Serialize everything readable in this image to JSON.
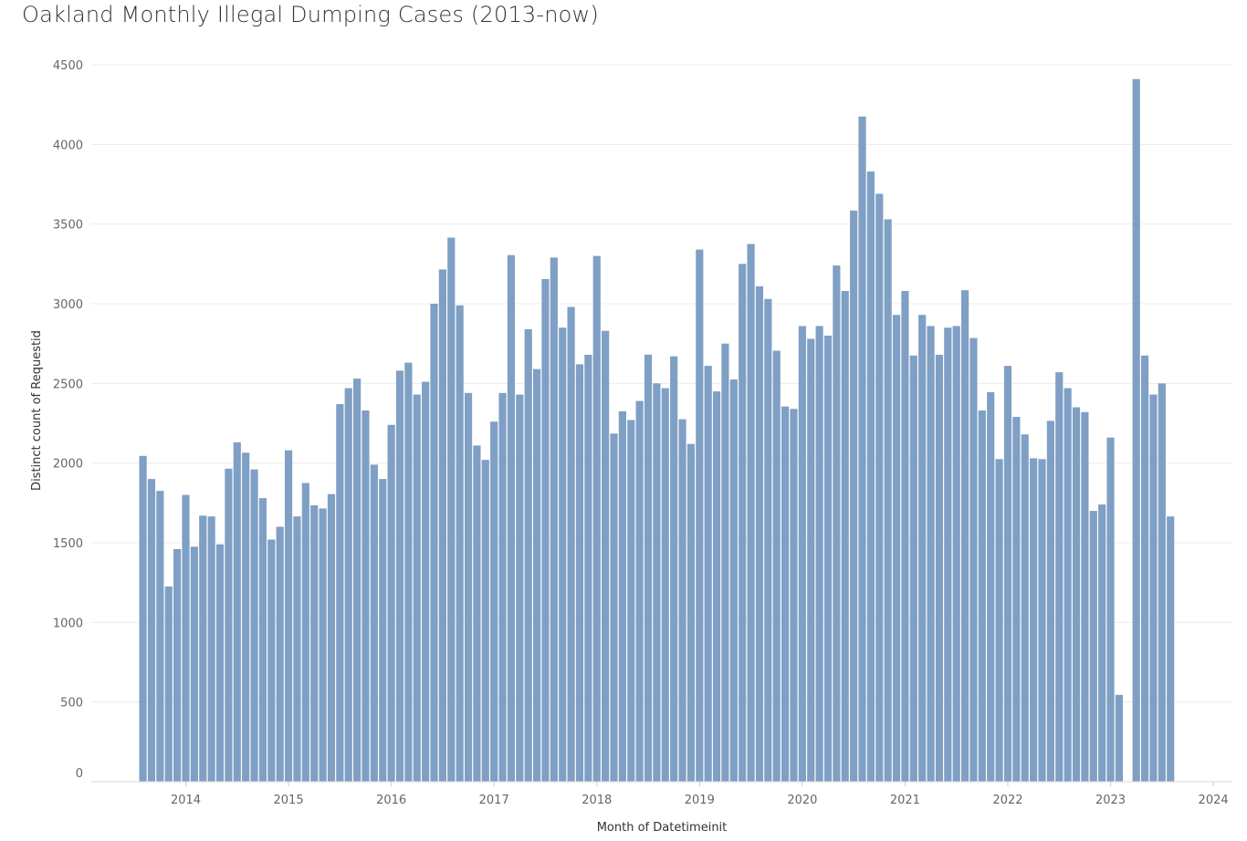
{
  "chart_data": {
    "type": "bar",
    "title": "Oakland Monthly Illegal Dumping Cases  (2013-now)",
    "xlabel": "Month of Datetimeinit",
    "ylabel": "Distinct count of Requestid",
    "ylim": [
      0,
      4500
    ],
    "y_ticks": [
      "0",
      "500",
      "1000",
      "1500",
      "2000",
      "2500",
      "3000",
      "3500",
      "4000",
      "4500"
    ],
    "x_tick_labels": [
      "2014",
      "2015",
      "2016",
      "2017",
      "2018",
      "2019",
      "2020",
      "2021",
      "2022",
      "2023",
      "2024"
    ],
    "x_start": "2013-08",
    "x_end": "2023-08",
    "bar_color": "#7f9fc4",
    "grid": true,
    "series": [
      {
        "name": "Distinct count of Requestid",
        "values": [
          2045,
          1900,
          1825,
          1225,
          1460,
          1800,
          1475,
          1670,
          1665,
          1490,
          1965,
          2130,
          2065,
          1960,
          1780,
          1520,
          1600,
          2080,
          1665,
          1875,
          1735,
          1715,
          1805,
          2370,
          2470,
          2530,
          2330,
          1990,
          1900,
          2240,
          2580,
          2630,
          2430,
          2510,
          3000,
          3215,
          3415,
          2990,
          2440,
          2110,
          2020,
          2260,
          2440,
          3305,
          2430,
          2840,
          2590,
          3155,
          3290,
          2850,
          2980,
          2620,
          2680,
          3300,
          2830,
          2185,
          2325,
          2270,
          2390,
          2680,
          2500,
          2470,
          2670,
          2275,
          2120,
          3340,
          2610,
          2450,
          2750,
          2525,
          3250,
          3375,
          3110,
          3030,
          2705,
          2355,
          2340,
          2860,
          2780,
          2860,
          2800,
          3240,
          3080,
          3585,
          4175,
          3830,
          3690,
          3530,
          2930,
          3080,
          2675,
          2930,
          2860,
          2680,
          2850,
          2860,
          3085,
          2785,
          2330,
          2445,
          2025,
          2610,
          2290,
          2180,
          2030,
          2025,
          2265,
          2570,
          2470,
          2350,
          2320,
          1700,
          1740,
          2160,
          545,
          0,
          4410,
          2675,
          2430,
          2500,
          1665
        ]
      }
    ]
  }
}
